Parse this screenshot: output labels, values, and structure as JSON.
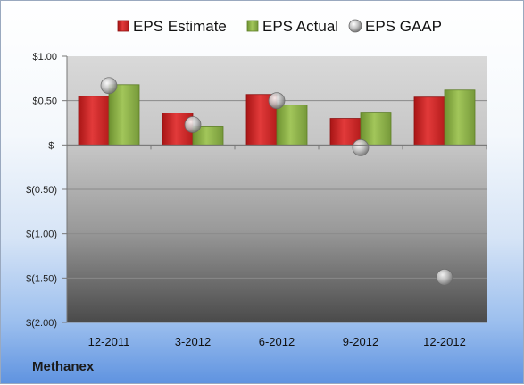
{
  "company": "Methanex",
  "chart_data": {
    "type": "bar",
    "categories": [
      "12-2011",
      "3-2012",
      "6-2012",
      "9-2012",
      "12-2012"
    ],
    "series": [
      {
        "name": "EPS Estimate",
        "type": "bar",
        "color": "#d42a2a",
        "values": [
          0.55,
          0.36,
          0.57,
          0.3,
          0.54
        ]
      },
      {
        "name": "EPS Actual",
        "type": "bar",
        "color": "#8ab043",
        "values": [
          0.68,
          0.21,
          0.45,
          0.37,
          0.62
        ]
      },
      {
        "name": "EPS GAAP",
        "type": "scatter",
        "color": "#a8a8a8",
        "values": [
          0.67,
          0.23,
          0.5,
          -0.03,
          -1.49
        ]
      }
    ],
    "yticks": [
      "$1.00",
      "$0.50",
      "$-",
      "$(0.50)",
      "$(1.00)",
      "$(1.50)",
      "$(2.00)"
    ],
    "ytick_values": [
      1.0,
      0.5,
      0.0,
      -0.5,
      -1.0,
      -1.5,
      -2.0
    ],
    "ylim": [
      -2.0,
      1.0
    ],
    "grid": true,
    "legend_position": "top"
  }
}
